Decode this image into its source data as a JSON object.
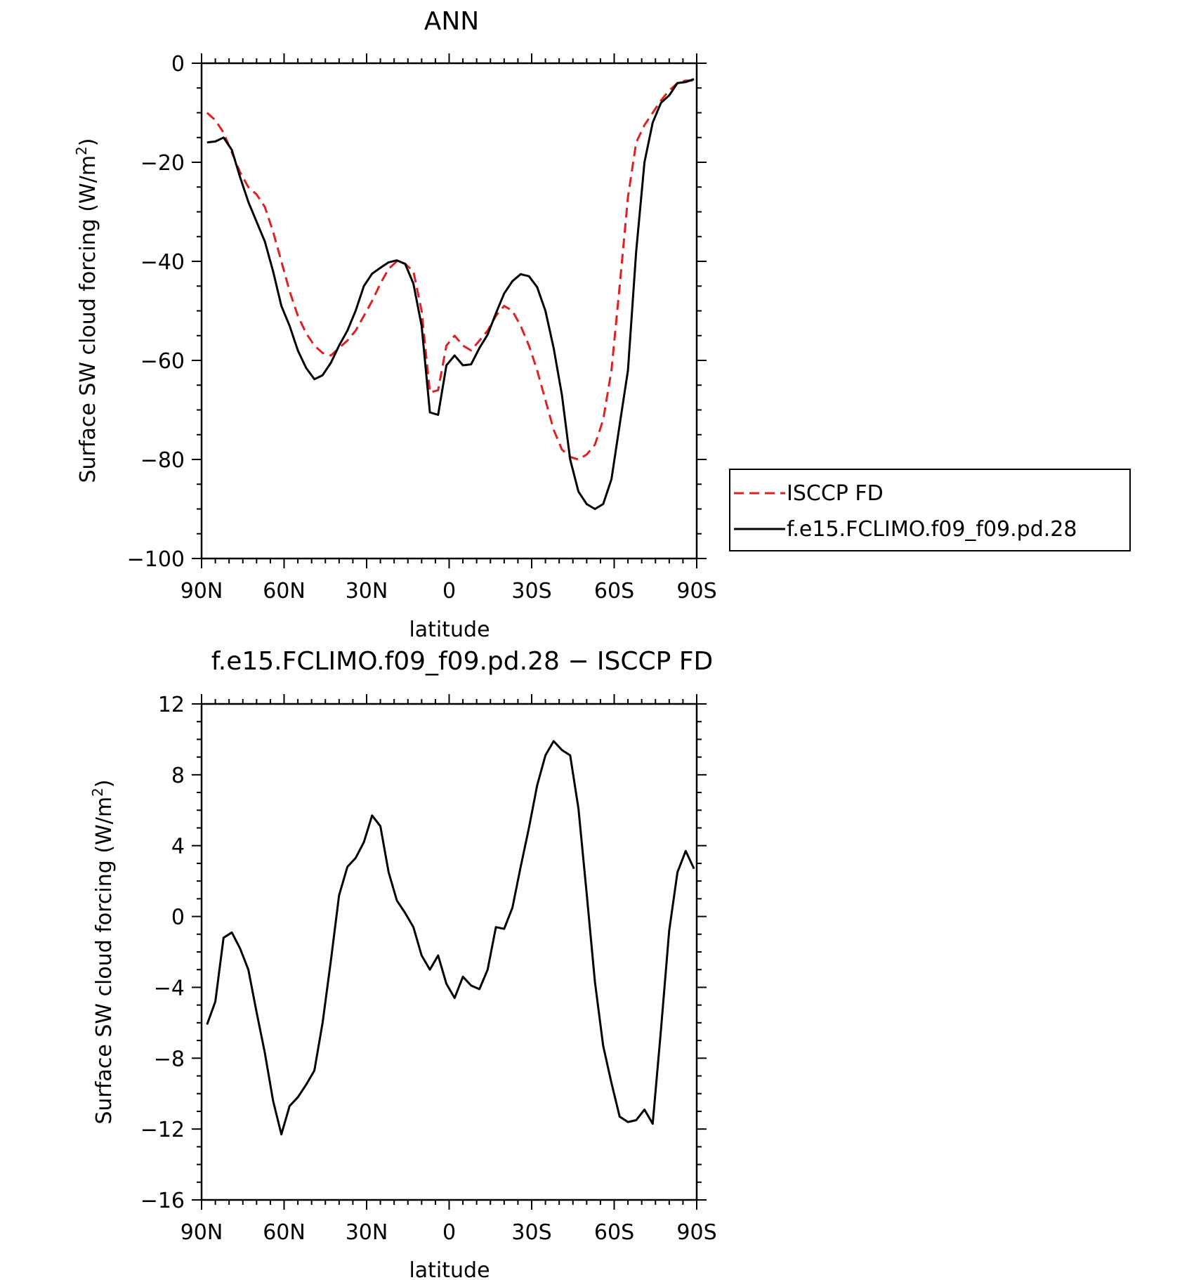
{
  "chart_data": [
    {
      "type": "line",
      "title": "ANN",
      "xlabel": "latitude",
      "ylabel": "Surface SW cloud forcing (W/m",
      "ylabel_sup": "2",
      "ylabel_close": ")",
      "xlim": [
        90,
        -90
      ],
      "ylim": [
        -100,
        0
      ],
      "xticks": [
        90,
        60,
        30,
        0,
        -30,
        -60,
        -90
      ],
      "xtick_labels": [
        "90N",
        "60N",
        "30N",
        "0",
        "30S",
        "60S",
        "90S"
      ],
      "yticks": [
        0,
        -20,
        -40,
        -60,
        -80,
        -100
      ],
      "ytick_labels": [
        "0",
        "−20",
        "−40",
        "−60",
        "−80",
        "−100"
      ],
      "legend_position": "right",
      "series": [
        {
          "name": "ISCCP FD",
          "color": "#e02020",
          "dash": "dashed",
          "x": [
            88,
            85,
            82,
            79,
            76,
            73,
            70,
            67,
            64,
            61,
            58,
            55,
            52,
            49,
            46,
            43,
            40,
            37,
            34,
            31,
            28,
            25,
            22,
            19,
            16,
            13,
            10,
            7,
            4,
            1,
            -2,
            -5,
            -8,
            -11,
            -14,
            -17,
            -20,
            -23,
            -26,
            -29,
            -32,
            -35,
            -38,
            -41,
            -44,
            -47,
            -50,
            -53,
            -56,
            -59,
            -62,
            -65,
            -68,
            -71,
            -74,
            -77,
            -80,
            -83,
            -86,
            -89
          ],
          "y": [
            -10,
            -11.5,
            -14,
            -18,
            -22,
            -25,
            -26.5,
            -29,
            -34,
            -40,
            -46,
            -51,
            -54.5,
            -57,
            -58.5,
            -59,
            -57.5,
            -56,
            -54,
            -51,
            -48,
            -44.5,
            -41.5,
            -40,
            -40.5,
            -42,
            -50,
            -66.5,
            -66,
            -57,
            -55,
            -57,
            -58,
            -56,
            -54,
            -51,
            -49,
            -50,
            -53,
            -57,
            -62,
            -68,
            -74,
            -78,
            -79.5,
            -80,
            -79,
            -77,
            -72,
            -62,
            -45,
            -27,
            -16,
            -12.5,
            -10,
            -7.5,
            -5.5,
            -4,
            -3.5,
            -3.5
          ]
        },
        {
          "name": "f.e15.FCLIMO.f09_f09.pd.28",
          "color": "#000000",
          "dash": "solid",
          "x": [
            88,
            85,
            82,
            79,
            76,
            73,
            70,
            67,
            64,
            61,
            58,
            55,
            52,
            49,
            46,
            43,
            40,
            37,
            34,
            31,
            28,
            25,
            22,
            19,
            16,
            13,
            10,
            7,
            4,
            1,
            -2,
            -5,
            -8,
            -11,
            -14,
            -17,
            -20,
            -23,
            -26,
            -29,
            -32,
            -35,
            -38,
            -41,
            -44,
            -47,
            -50,
            -53,
            -56,
            -59,
            -62,
            -65,
            -68,
            -71,
            -74,
            -77,
            -80,
            -83,
            -86,
            -89
          ],
          "y": [
            -16,
            -15.8,
            -15,
            -17.5,
            -23,
            -28,
            -32,
            -36,
            -42,
            -49,
            -53,
            -58,
            -61.5,
            -63.8,
            -63,
            -60.5,
            -57,
            -54,
            -50,
            -45,
            -42.5,
            -41.3,
            -40.2,
            -39.8,
            -40.5,
            -44.5,
            -53,
            -70.5,
            -71,
            -61,
            -59,
            -61,
            -60.8,
            -57.5,
            -54.8,
            -50.5,
            -46.5,
            -44,
            -42.6,
            -43,
            -45.2,
            -50,
            -57.5,
            -67,
            -80,
            -86.5,
            -89,
            -90,
            -89,
            -84,
            -73,
            -62,
            -38,
            -20,
            -12,
            -8,
            -6.5,
            -4,
            -3.8,
            -3.2
          ]
        }
      ]
    },
    {
      "type": "line",
      "title": "f.e15.FCLIMO.f09_f09.pd.28 − ISCCP FD",
      "xlabel": "latitude",
      "ylabel": "Surface SW cloud forcing (W/m",
      "ylabel_sup": "2",
      "ylabel_close": ")",
      "xlim": [
        90,
        -90
      ],
      "ylim": [
        -16,
        12
      ],
      "xticks": [
        90,
        60,
        30,
        0,
        -30,
        -60,
        -90
      ],
      "xtick_labels": [
        "90N",
        "60N",
        "30N",
        "0",
        "30S",
        "60S",
        "90S"
      ],
      "yticks": [
        12,
        8,
        4,
        0,
        -4,
        -8,
        -12,
        -16
      ],
      "ytick_labels": [
        "12",
        "8",
        "4",
        "0",
        "−4",
        "−8",
        "−12",
        "−16"
      ],
      "series": [
        {
          "color": "#000000",
          "dash": "solid",
          "x": [
            88,
            85,
            82,
            79,
            76,
            73,
            70,
            67,
            64,
            61,
            58,
            55,
            52,
            49,
            46,
            43,
            40,
            37,
            34,
            31,
            28,
            25,
            22,
            19,
            16,
            13,
            10,
            7,
            4,
            1,
            -2,
            -5,
            -8,
            -11,
            -14,
            -17,
            -20,
            -23,
            -26,
            -29,
            -32,
            -35,
            -38,
            -41,
            -44,
            -47,
            -50,
            -53,
            -56,
            -59,
            -62,
            -65,
            -68,
            -71,
            -74,
            -77,
            -80,
            -83,
            -86,
            -89
          ],
          "y": [
            -6.1,
            -4.8,
            -1.2,
            -0.9,
            -1.8,
            -3,
            -5.4,
            -7.7,
            -10.4,
            -12.3,
            -10.7,
            -10.2,
            -9.5,
            -8.7,
            -6,
            -2.5,
            1.2,
            2.8,
            3.3,
            4.2,
            5.7,
            5.1,
            2.5,
            0.9,
            0.2,
            -0.6,
            -2.2,
            -3,
            -2.2,
            -3.8,
            -4.6,
            -3.4,
            -3.9,
            -4.1,
            -3,
            -0.6,
            -0.7,
            0.5,
            2.8,
            5,
            7.4,
            9.1,
            9.9,
            9.4,
            9.1,
            6.1,
            1.3,
            -3.7,
            -7.3,
            -9.4,
            -11.3,
            -11.6,
            -11.5,
            -10.9,
            -11.7,
            -6.4,
            -0.8,
            2.5,
            3.7,
            2.7
          ]
        }
      ]
    }
  ]
}
